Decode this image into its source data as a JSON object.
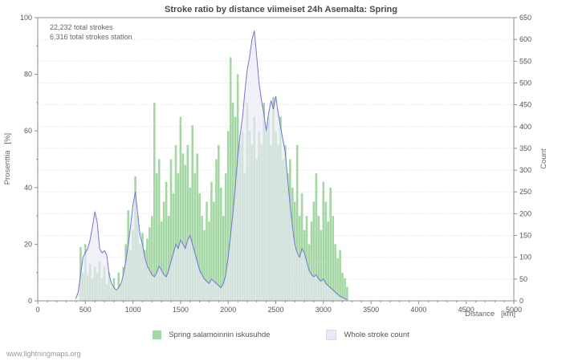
{
  "footer": "www.lightningmaps.org",
  "annotations": {
    "total_strokes": "22,232 total strokes",
    "total_strokes_station": "6,316 total strokes station"
  },
  "colors": {
    "bar": "#a3d7a3",
    "area_fill": "#e9e9f8",
    "line": "#7575d0",
    "grid": "#d9d9d9",
    "axis": "#8c8c8c",
    "text": "#555555"
  },
  "chart_data": {
    "type": "bar",
    "title": "Stroke ratio by distance viimeiset 24h Asemalta: Spring",
    "xlabel": "Distance   [km]",
    "ylabel_left": "Prosenttia   [%]",
    "ylabel_right": "Count",
    "xlim": [
      0,
      5000
    ],
    "ylim_left": [
      0,
      100
    ],
    "ylim_right": [
      0,
      650
    ],
    "x_ticks": [
      0,
      500,
      1000,
      1500,
      2000,
      2500,
      3000,
      3500,
      4000,
      4500,
      5000
    ],
    "x_minor_step": 100,
    "left_ticks": [
      0,
      20,
      40,
      60,
      80,
      100
    ],
    "left_minor_step": 10,
    "right_ticks": [
      0,
      50,
      100,
      150,
      200,
      250,
      300,
      350,
      400,
      450,
      500,
      550,
      600,
      650
    ],
    "grid": true,
    "legend_position": "bottom",
    "x": [
      400,
      425,
      450,
      475,
      500,
      525,
      550,
      575,
      600,
      625,
      650,
      675,
      700,
      725,
      750,
      775,
      800,
      825,
      850,
      875,
      900,
      925,
      950,
      975,
      1000,
      1025,
      1050,
      1075,
      1100,
      1125,
      1150,
      1175,
      1200,
      1225,
      1250,
      1275,
      1300,
      1325,
      1350,
      1375,
      1400,
      1425,
      1450,
      1475,
      1500,
      1525,
      1550,
      1575,
      1600,
      1625,
      1650,
      1675,
      1700,
      1725,
      1750,
      1775,
      1800,
      1825,
      1850,
      1875,
      1900,
      1925,
      1950,
      1975,
      2000,
      2025,
      2050,
      2075,
      2100,
      2125,
      2150,
      2175,
      2200,
      2225,
      2250,
      2275,
      2300,
      2325,
      2350,
      2375,
      2400,
      2425,
      2450,
      2475,
      2500,
      2525,
      2550,
      2575,
      2600,
      2625,
      2650,
      2675,
      2700,
      2725,
      2750,
      2775,
      2800,
      2825,
      2850,
      2875,
      2900,
      2925,
      2950,
      2975,
      3000,
      3025,
      3050,
      3075,
      3100,
      3125,
      3150,
      3175,
      3200,
      3225,
      3250
    ],
    "series": [
      {
        "name": "Spring salamoinnin iskusuhde",
        "type": "bar",
        "axis": "left",
        "color": "#a3d7a3",
        "values": [
          0,
          0,
          19,
          10,
          20,
          9,
          13,
          8,
          12,
          10,
          14,
          8,
          12,
          6,
          10,
          5,
          8,
          4,
          10,
          6,
          12,
          20,
          32,
          18,
          25,
          44,
          30,
          20,
          24,
          18,
          22,
          26,
          30,
          70,
          45,
          50,
          28,
          35,
          42,
          30,
          50,
          38,
          55,
          45,
          65,
          52,
          48,
          55,
          40,
          62,
          45,
          52,
          38,
          30,
          25,
          35,
          28,
          42,
          35,
          50,
          55,
          40,
          30,
          45,
          60,
          86,
          70,
          65,
          80,
          55,
          60,
          45,
          70,
          60,
          55,
          65,
          50,
          60,
          55,
          70,
          60,
          65,
          55,
          72,
          60,
          55,
          65,
          50,
          55,
          45,
          50,
          40,
          35,
          55,
          30,
          38,
          25,
          30,
          20,
          28,
          35,
          45,
          30,
          25,
          42,
          35,
          28,
          40,
          30,
          20,
          15,
          18,
          10,
          8,
          5
        ]
      },
      {
        "name": "Whole stroke count",
        "type": "area-line",
        "axis": "right",
        "fill": "#e9e9f8",
        "line_color": "#7575d0",
        "values": [
          5,
          20,
          60,
          100,
          110,
          120,
          140,
          170,
          205,
          180,
          120,
          110,
          115,
          105,
          60,
          40,
          30,
          25,
          30,
          40,
          60,
          90,
          130,
          170,
          220,
          250,
          200,
          150,
          130,
          100,
          80,
          70,
          60,
          55,
          65,
          80,
          70,
          60,
          55,
          70,
          90,
          110,
          130,
          120,
          140,
          130,
          120,
          140,
          150,
          130,
          110,
          90,
          70,
          60,
          50,
          45,
          40,
          50,
          45,
          40,
          35,
          30,
          40,
          60,
          100,
          150,
          200,
          260,
          330,
          380,
          420,
          480,
          530,
          560,
          600,
          620,
          560,
          500,
          460,
          430,
          390,
          430,
          460,
          440,
          470,
          430,
          400,
          370,
          340,
          280,
          220,
          170,
          130,
          110,
          100,
          120,
          110,
          90,
          70,
          60,
          55,
          60,
          50,
          45,
          50,
          40,
          35,
          30,
          25,
          20,
          15,
          10,
          8,
          5,
          3
        ]
      }
    ]
  }
}
